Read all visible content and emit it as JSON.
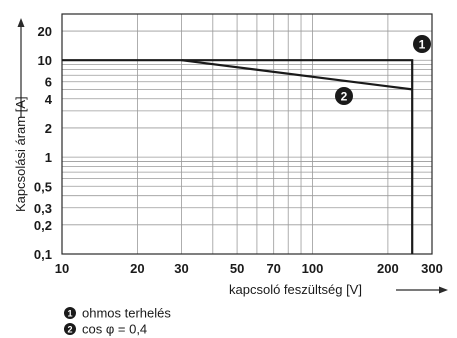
{
  "chart_data": {
    "type": "line",
    "xlabel": "kapcsoló feszültség [V]",
    "ylabel": "Kapcsolási áram [A]",
    "xscale": "log",
    "yscale": "log",
    "xlim": [
      10,
      300
    ],
    "ylim": [
      0.1,
      30
    ],
    "x_ticks": [
      {
        "value": 10,
        "label": "10"
      },
      {
        "value": 20,
        "label": "20"
      },
      {
        "value": 30,
        "label": "30"
      },
      {
        "value": 50,
        "label": "50"
      },
      {
        "value": 70,
        "label": "70"
      },
      {
        "value": 100,
        "label": "100"
      },
      {
        "value": 200,
        "label": "200"
      },
      {
        "value": 300,
        "label": "300"
      }
    ],
    "y_ticks": [
      {
        "value": 0.1,
        "label": "0,1"
      },
      {
        "value": 0.2,
        "label": "0,2"
      },
      {
        "value": 0.3,
        "label": "0,3"
      },
      {
        "value": 0.5,
        "label": "0,5"
      },
      {
        "value": 1,
        "label": "1"
      },
      {
        "value": 2,
        "label": "2"
      },
      {
        "value": 4,
        "label": "4"
      },
      {
        "value": 6,
        "label": "6"
      },
      {
        "value": 10,
        "label": "10"
      },
      {
        "value": 20,
        "label": "20"
      }
    ],
    "grid": true,
    "series": [
      {
        "marker": "1",
        "x": [
          10,
          250,
          250
        ],
        "y": [
          10,
          10,
          0.1
        ]
      },
      {
        "marker": "2",
        "x": [
          30,
          250
        ],
        "y": [
          10,
          5
        ]
      }
    ],
    "legend": [
      {
        "marker": "1",
        "text": "ohmos terhelés"
      },
      {
        "marker": "2",
        "text": "cos φ = 0,4"
      }
    ]
  }
}
